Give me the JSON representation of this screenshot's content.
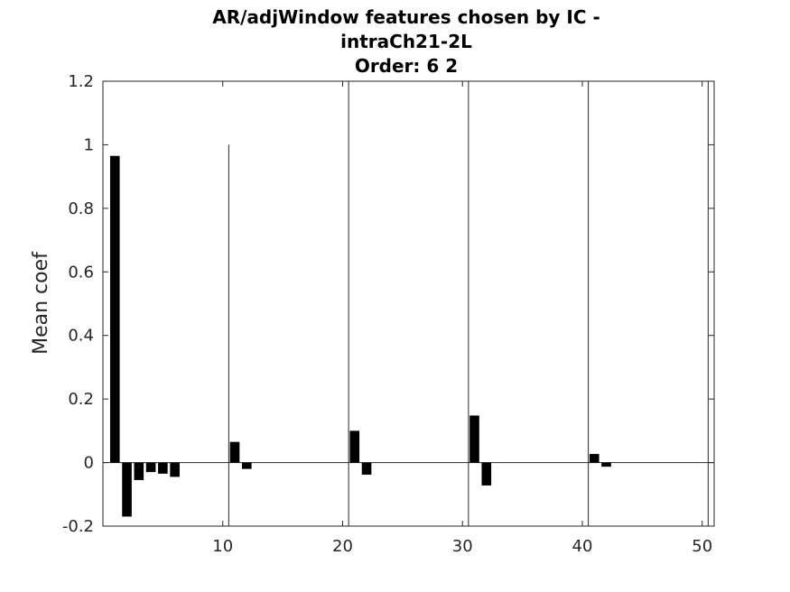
{
  "chart_data": {
    "type": "bar",
    "title": [
      "AR/adjWindow features chosen by IC -",
      "intraCh21-2L",
      "Order: 6 2"
    ],
    "xlabel": "",
    "ylabel": "Mean coef",
    "xlim": [
      0,
      51
    ],
    "ylim": [
      -0.2,
      1.2
    ],
    "xticks": [
      10,
      20,
      30,
      40,
      50
    ],
    "yticks": [
      -0.2,
      0,
      0.2,
      0.4,
      0.6,
      0.8,
      1,
      1.2
    ],
    "ytick_labels": [
      "-0.2",
      "0",
      "0.2",
      "0.4",
      "0.6",
      "0.8",
      "1",
      "1.2"
    ],
    "bar_color": "#000000",
    "grid": false,
    "x": [
      1,
      2,
      3,
      4,
      5,
      6,
      11,
      12,
      21,
      22,
      31,
      32,
      41,
      42
    ],
    "values": [
      0.965,
      -0.17,
      -0.055,
      -0.03,
      -0.035,
      -0.045,
      0.065,
      -0.02,
      0.1,
      -0.038,
      0.148,
      -0.072,
      0.027,
      -0.013
    ],
    "separators": [
      {
        "x": 10.5,
        "y": [
          -0.2,
          1.0
        ]
      },
      {
        "x": 20.5,
        "y": [
          -0.2,
          1.2
        ]
      },
      {
        "x": 30.5,
        "y": [
          -0.2,
          1.2
        ]
      },
      {
        "x": 40.5,
        "y": [
          -0.2,
          1.2
        ]
      },
      {
        "x": 50.5,
        "y": [
          -0.2,
          1.2
        ]
      }
    ]
  }
}
